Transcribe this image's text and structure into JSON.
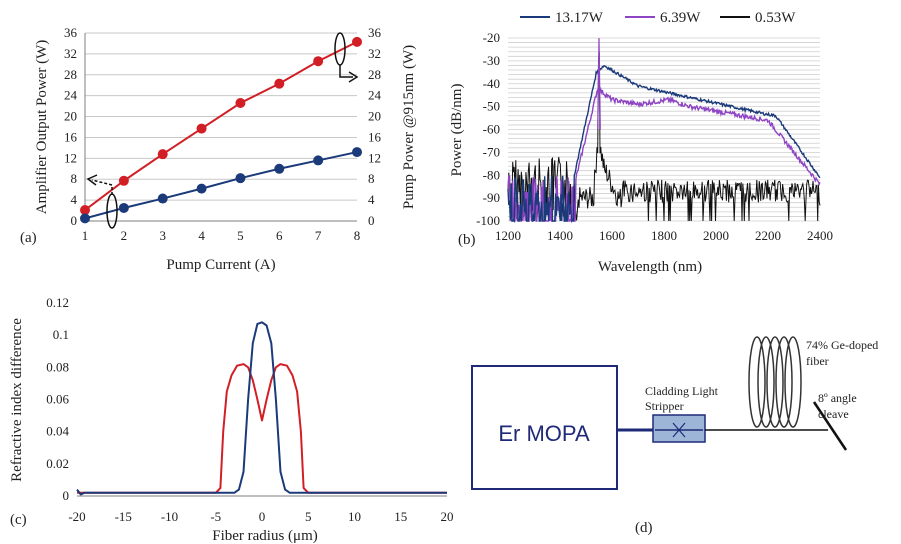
{
  "panels": {
    "a": {
      "tag": "(a)"
    },
    "b": {
      "tag": "(b)"
    },
    "c": {
      "tag": "(c)"
    },
    "d": {
      "tag": "(d)"
    }
  },
  "colors": {
    "red": "#d21f26",
    "blue": "#1b3a7a",
    "purple": "#8e44c4",
    "black": "#111111",
    "stripper": "#9db6d8",
    "navy": "#1e2a78"
  },
  "chart_data": [
    {
      "id": "a",
      "type": "scatter",
      "xlabel": "Pump Current (A)",
      "ylabel": "Amplifier Output Power (W)",
      "y2label": "Pump Power @915nm (W)",
      "xlim": [
        1,
        8
      ],
      "ylim": [
        0,
        36
      ],
      "y2lim": [
        0,
        36
      ],
      "xticks": [
        "1",
        "2",
        "3",
        "4",
        "5",
        "6",
        "7",
        "8"
      ],
      "yticks": [
        "0",
        "4",
        "8",
        "12",
        "16",
        "20",
        "24",
        "28",
        "32",
        "36"
      ],
      "grid": true,
      "series": [
        {
          "axis": "right",
          "color": "#d21f26",
          "x": [
            1,
            2,
            3,
            4,
            5,
            6,
            7,
            8
          ],
          "y": [
            2.1,
            7.7,
            12.8,
            17.7,
            22.6,
            26.3,
            30.6,
            34.3
          ]
        },
        {
          "axis": "left",
          "color": "#1b3a7a",
          "x": [
            1,
            2,
            3,
            4,
            5,
            6,
            7,
            8
          ],
          "y": [
            0.5,
            2.5,
            4.3,
            6.2,
            8.2,
            10.0,
            11.6,
            13.2
          ]
        }
      ]
    },
    {
      "id": "b",
      "type": "line",
      "xlabel": "Wavelength (nm)",
      "ylabel": "Power (dB/nm)",
      "xlim": [
        1200,
        2400
      ],
      "ylim": [
        -100,
        -20
      ],
      "xticks": [
        "1200",
        "1400",
        "1600",
        "1800",
        "2000",
        "2200",
        "2400"
      ],
      "yticks": [
        "-20",
        "-30",
        "-40",
        "-50",
        "-60",
        "-70",
        "-80",
        "-90",
        "-100"
      ],
      "grid": true,
      "legend": "top",
      "series": [
        {
          "name": "13.17W",
          "color": "#1b3a7a"
        },
        {
          "name": "6.39W",
          "color": "#8e44c4"
        },
        {
          "name": "0.53W",
          "color": "#111111"
        }
      ]
    },
    {
      "id": "c",
      "type": "line",
      "xlabel": "Fiber radius (μm)",
      "ylabel": "Refractive index difference",
      "xlim": [
        -20,
        20
      ],
      "ylim": [
        0,
        0.12
      ],
      "xticks": [
        "-20",
        "-15",
        "-10",
        "-5",
        "0",
        "5",
        "10",
        "15",
        "20"
      ],
      "yticks": [
        "0",
        "0.02",
        "0.04",
        "0.06",
        "0.08",
        "0.1",
        "0.12"
      ],
      "grid": false,
      "series": [
        {
          "color": "#d21f26",
          "x": [
            -20,
            -5,
            -4.5,
            -4.2,
            -3.8,
            -3.3,
            -2.7,
            -2.0,
            -1.5,
            -1.0,
            -0.5,
            0,
            0.5,
            1.0,
            1.5,
            2.0,
            2.7,
            3.3,
            3.8,
            4.2,
            4.5,
            5,
            20
          ],
          "y": [
            0.002,
            0.002,
            0.005,
            0.04,
            0.065,
            0.075,
            0.081,
            0.082,
            0.08,
            0.072,
            0.06,
            0.047,
            0.06,
            0.072,
            0.08,
            0.082,
            0.081,
            0.075,
            0.065,
            0.04,
            0.005,
            0.002,
            0.002
          ]
        },
        {
          "color": "#1b3a7a",
          "x": [
            -20,
            -19.6,
            -19.2,
            -18,
            -3,
            -2.5,
            -2.0,
            -1.5,
            -1.0,
            -0.5,
            0,
            0.5,
            1.0,
            1.5,
            2.0,
            2.5,
            3,
            20
          ],
          "y": [
            0.004,
            0.001,
            0.002,
            0.002,
            0.002,
            0.004,
            0.015,
            0.06,
            0.095,
            0.107,
            0.108,
            0.106,
            0.095,
            0.06,
            0.015,
            0.004,
            0.002,
            0.002
          ]
        }
      ]
    }
  ],
  "diagram": {
    "mopa_label": "Er MOPA",
    "stripper_label_1": "Cladding Light",
    "stripper_label_2": "Stripper",
    "fiber_label_1": "74% Ge-doped",
    "fiber_label_2": "fiber",
    "cleave_label_1": "8º angle",
    "cleave_label_2": "cleave"
  }
}
